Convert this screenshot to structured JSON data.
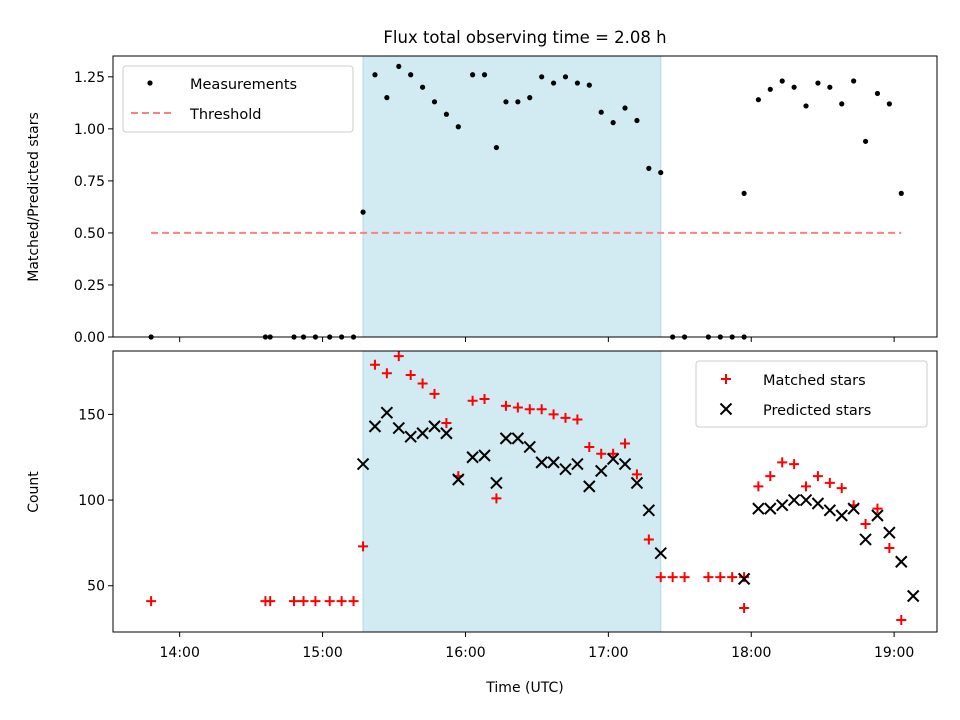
{
  "colors": {
    "span": "#add8e6",
    "measurements": "#000000",
    "threshold": "#ff7f7f",
    "matched": "#ff0000",
    "predicted": "#000000"
  },
  "chart_data": [
    {
      "type": "scatter",
      "title": "Flux total observing time = 2.08 h",
      "xlabel": "",
      "ylabel": "Matched/Predicted stars",
      "xlim": [
        "13:32",
        "19:18"
      ],
      "ylim": [
        0,
        1.35
      ],
      "yticks": [
        "0.00",
        "0.25",
        "0.50",
        "0.75",
        "1.00",
        "1.25"
      ],
      "grid": false,
      "legend_position": "upper left",
      "shaded_span": [
        "15:17",
        "17:22"
      ],
      "threshold_line": {
        "y": 0.5,
        "x_range": [
          "13:48",
          "19:03"
        ]
      },
      "series": [
        {
          "name": "Measurements",
          "marker": "dot",
          "points": [
            [
              "13:48",
              0.0
            ],
            [
              "14:36",
              0.0
            ],
            [
              "14:38",
              0.0
            ],
            [
              "14:48",
              0.0
            ],
            [
              "14:52",
              0.0
            ],
            [
              "14:57",
              0.0
            ],
            [
              "15:03",
              0.0
            ],
            [
              "15:08",
              0.0
            ],
            [
              "15:13",
              0.0
            ],
            [
              "15:17",
              0.6
            ],
            [
              "15:22",
              1.26
            ],
            [
              "15:27",
              1.15
            ],
            [
              "15:32",
              1.3
            ],
            [
              "15:37",
              1.26
            ],
            [
              "15:42",
              1.2
            ],
            [
              "15:47",
              1.13
            ],
            [
              "15:52",
              1.07
            ],
            [
              "15:57",
              1.01
            ],
            [
              "16:03",
              1.26
            ],
            [
              "16:08",
              1.26
            ],
            [
              "16:13",
              0.91
            ],
            [
              "16:17",
              1.13
            ],
            [
              "16:22",
              1.13
            ],
            [
              "16:27",
              1.15
            ],
            [
              "16:32",
              1.25
            ],
            [
              "16:37",
              1.22
            ],
            [
              "16:42",
              1.25
            ],
            [
              "16:47",
              1.22
            ],
            [
              "16:52",
              1.21
            ],
            [
              "16:57",
              1.08
            ],
            [
              "17:02",
              1.03
            ],
            [
              "17:07",
              1.1
            ],
            [
              "17:12",
              1.04
            ],
            [
              "17:17",
              0.81
            ],
            [
              "17:22",
              0.79
            ],
            [
              "17:27",
              0.0
            ],
            [
              "17:32",
              0.0
            ],
            [
              "17:42",
              0.0
            ],
            [
              "17:47",
              0.0
            ],
            [
              "17:52",
              0.0
            ],
            [
              "17:57",
              0.0
            ],
            [
              "17:57",
              0.69
            ],
            [
              "18:03",
              1.14
            ],
            [
              "18:08",
              1.19
            ],
            [
              "18:13",
              1.23
            ],
            [
              "18:18",
              1.2
            ],
            [
              "18:23",
              1.11
            ],
            [
              "18:28",
              1.22
            ],
            [
              "18:33",
              1.2
            ],
            [
              "18:38",
              1.12
            ],
            [
              "18:43",
              1.23
            ],
            [
              "18:48",
              0.94
            ],
            [
              "18:53",
              1.17
            ],
            [
              "18:58",
              1.12
            ],
            [
              "19:03",
              0.69
            ]
          ]
        },
        {
          "name": "Threshold",
          "marker": "dashed-line"
        }
      ]
    },
    {
      "type": "scatter",
      "title": "",
      "xlabel": "Time (UTC)",
      "ylabel": "Count",
      "xlim": [
        "13:32",
        "19:18"
      ],
      "ylim": [
        23,
        187
      ],
      "yticks": [
        "50",
        "100",
        "150"
      ],
      "xticks": [
        "14:00",
        "15:00",
        "16:00",
        "17:00",
        "18:00",
        "19:00"
      ],
      "grid": false,
      "legend_position": "upper right",
      "shaded_span": [
        "15:17",
        "17:22"
      ],
      "series": [
        {
          "name": "Matched stars",
          "marker": "plus",
          "points": [
            [
              "13:48",
              41
            ],
            [
              "14:36",
              41
            ],
            [
              "14:38",
              41
            ],
            [
              "14:48",
              41
            ],
            [
              "14:52",
              41
            ],
            [
              "14:57",
              41
            ],
            [
              "15:03",
              41
            ],
            [
              "15:08",
              41
            ],
            [
              "15:13",
              41
            ],
            [
              "15:17",
              73
            ],
            [
              "15:22",
              179
            ],
            [
              "15:27",
              174
            ],
            [
              "15:32",
              184
            ],
            [
              "15:37",
              173
            ],
            [
              "15:42",
              168
            ],
            [
              "15:47",
              162
            ],
            [
              "15:52",
              145
            ],
            [
              "15:57",
              114
            ],
            [
              "16:03",
              158
            ],
            [
              "16:08",
              159
            ],
            [
              "16:13",
              101
            ],
            [
              "16:17",
              155
            ],
            [
              "16:22",
              154
            ],
            [
              "16:27",
              153
            ],
            [
              "16:32",
              153
            ],
            [
              "16:37",
              150
            ],
            [
              "16:42",
              148
            ],
            [
              "16:47",
              147
            ],
            [
              "16:52",
              131
            ],
            [
              "16:57",
              127
            ],
            [
              "17:02",
              127
            ],
            [
              "17:07",
              133
            ],
            [
              "17:12",
              115
            ],
            [
              "17:17",
              77
            ],
            [
              "17:22",
              55
            ],
            [
              "17:27",
              55
            ],
            [
              "17:32",
              55
            ],
            [
              "17:42",
              55
            ],
            [
              "17:47",
              55
            ],
            [
              "17:52",
              55
            ],
            [
              "17:57",
              55
            ],
            [
              "17:57",
              37
            ],
            [
              "18:03",
              108
            ],
            [
              "18:08",
              114
            ],
            [
              "18:13",
              122
            ],
            [
              "18:18",
              121
            ],
            [
              "18:23",
              108
            ],
            [
              "18:28",
              114
            ],
            [
              "18:33",
              110
            ],
            [
              "18:38",
              107
            ],
            [
              "18:43",
              97
            ],
            [
              "18:48",
              86
            ],
            [
              "18:53",
              95
            ],
            [
              "18:58",
              72
            ],
            [
              "19:03",
              30
            ]
          ]
        },
        {
          "name": "Predicted stars",
          "marker": "x",
          "points": [
            [
              "15:17",
              121
            ],
            [
              "15:22",
              143
            ],
            [
              "15:27",
              151
            ],
            [
              "15:32",
              142
            ],
            [
              "15:37",
              137
            ],
            [
              "15:42",
              139
            ],
            [
              "15:47",
              143
            ],
            [
              "15:52",
              139
            ],
            [
              "15:57",
              112
            ],
            [
              "16:03",
              125
            ],
            [
              "16:08",
              126
            ],
            [
              "16:13",
              110
            ],
            [
              "16:17",
              136
            ],
            [
              "16:22",
              136
            ],
            [
              "16:27",
              131
            ],
            [
              "16:32",
              122
            ],
            [
              "16:37",
              122
            ],
            [
              "16:42",
              118
            ],
            [
              "16:47",
              121
            ],
            [
              "16:52",
              108
            ],
            [
              "16:57",
              117
            ],
            [
              "17:02",
              124
            ],
            [
              "17:07",
              121
            ],
            [
              "17:12",
              110
            ],
            [
              "17:17",
              94
            ],
            [
              "17:22",
              69
            ],
            [
              "17:57",
              54
            ],
            [
              "18:03",
              95
            ],
            [
              "18:08",
              95
            ],
            [
              "18:13",
              97
            ],
            [
              "18:18",
              100
            ],
            [
              "18:23",
              100
            ],
            [
              "18:28",
              98
            ],
            [
              "18:33",
              94
            ],
            [
              "18:38",
              91
            ],
            [
              "18:43",
              95
            ],
            [
              "18:48",
              77
            ],
            [
              "18:53",
              91
            ],
            [
              "18:58",
              81
            ],
            [
              "19:03",
              64
            ],
            [
              "19:08",
              44
            ]
          ]
        }
      ]
    }
  ]
}
